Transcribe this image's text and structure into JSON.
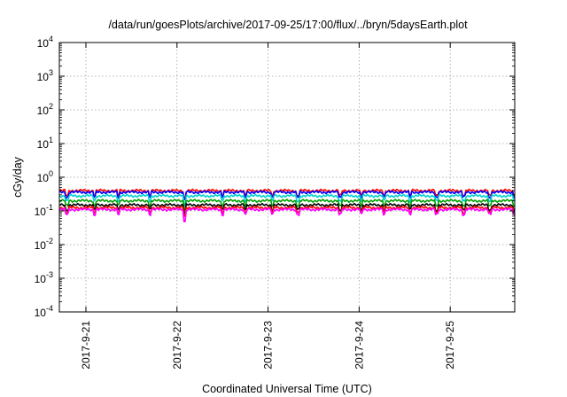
{
  "chart_data": {
    "type": "line",
    "title": "/data/run/goesPlots/archive/2017-09-25/17:00/flux/../bryn/5daysEarth.plot",
    "xlabel": "Coordinated Universal Time (UTC)",
    "ylabel": "cGy/day",
    "y_scale": "log",
    "ylim": [
      0.0001,
      10000
    ],
    "y_ticks": [
      {
        "base": "10",
        "exp": "-4",
        "value": 0.0001
      },
      {
        "base": "10",
        "exp": "-3",
        "value": 0.001
      },
      {
        "base": "10",
        "exp": "-2",
        "value": 0.01
      },
      {
        "base": "10",
        "exp": "-1",
        "value": 0.1
      },
      {
        "base": "10",
        "exp": "0",
        "value": 1
      },
      {
        "base": "10",
        "exp": "1",
        "value": 10
      },
      {
        "base": "10",
        "exp": "2",
        "value": 100
      },
      {
        "base": "10",
        "exp": "3",
        "value": 1000
      },
      {
        "base": "10",
        "exp": "4",
        "value": 10000
      }
    ],
    "xlim": [
      "2017-09-20T17:00",
      "2017-09-25T17:00"
    ],
    "x_ticks": [
      "2017-9-21",
      "2017-9-22",
      "2017-9-23",
      "2017-9-24",
      "2017-9-25"
    ],
    "grid": true,
    "series": [
      {
        "color": "#ff0000",
        "base": 0.4,
        "dips": [
          {
            "x": "2017-09-22T02:00",
            "min": 0.16
          }
        ]
      },
      {
        "color": "#0000ff",
        "base": 0.36,
        "dips": [
          {
            "x": "2017-09-22T02:00",
            "min": 0.14
          }
        ]
      },
      {
        "color": "#00d0d0",
        "base": 0.28,
        "dips": [
          {
            "x": "2017-09-22T02:00",
            "min": 0.08
          }
        ]
      },
      {
        "color": "#00a000",
        "base": 0.2,
        "dips": [
          {
            "x": "2017-09-22T02:00",
            "min": 0.07
          }
        ]
      },
      {
        "color": "#000000",
        "base": 0.15,
        "dips": [
          {
            "x": "2017-09-22T02:00",
            "min": 0.05
          }
        ]
      },
      {
        "color": "#ff0000",
        "base": 0.125,
        "dips": [
          {
            "x": "2017-09-22T02:00",
            "min": 0.04
          }
        ]
      },
      {
        "color": "#ff00ff",
        "base": 0.11,
        "dips": [
          {
            "x": "2017-09-22T02:00",
            "min": 0.017
          }
        ]
      }
    ]
  }
}
